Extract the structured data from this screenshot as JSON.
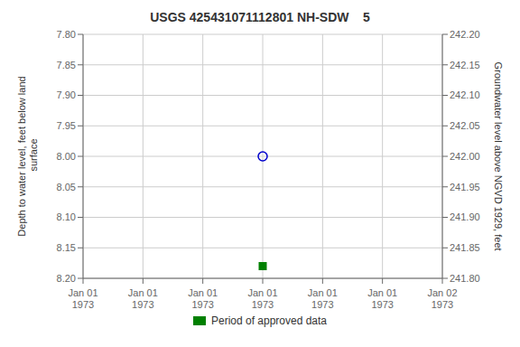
{
  "chart_data": {
    "type": "scatter",
    "title": "USGS 425431071112801 NH-SDW    5",
    "ylabel": "Depth to water level, feet below land\n surface",
    "y2label": "Groundwater level above NGVD 1929, feet",
    "categories": [
      "Jan 01\n1973",
      "Jan 01\n1973",
      "Jan 01\n1973",
      "Jan 01\n1973",
      "Jan 01\n1973",
      "Jan 01\n1973",
      "Jan 02\n1973"
    ],
    "series": [
      {
        "color": "#0000cc",
        "marker": "circle",
        "values": [
          null,
          null,
          null,
          8.0,
          null,
          null,
          null
        ]
      },
      {
        "name": "Period of approved data",
        "color": "#008000",
        "marker": "square",
        "values": [
          null,
          null,
          null,
          8.18,
          null,
          null,
          null
        ]
      }
    ],
    "ylim": [
      8.2,
      7.8
    ],
    "yticks": [
      {
        "value": 7.8,
        "label": "7.80"
      },
      7.85,
      {
        "value": 7.9,
        "label": "7.90"
      },
      7.95,
      {
        "value": 8.0,
        "label": "8.00"
      },
      8.05,
      {
        "value": 8.1,
        "label": "8.10"
      },
      8.15,
      {
        "value": 8.2,
        "label": "8.20"
      }
    ],
    "y2lim": [
      241.8,
      242.2
    ],
    "y2ticks": [
      {
        "value": 242.2,
        "label": "242.20"
      },
      242.15,
      {
        "value": 242.1,
        "label": "242.10"
      },
      242.05,
      {
        "value": 242.0,
        "label": "242.00"
      },
      241.95,
      {
        "value": 241.9,
        "label": "241.90"
      },
      241.85,
      {
        "value": 241.8,
        "label": "241.80"
      }
    ],
    "grid": true,
    "legend": "bottom"
  }
}
